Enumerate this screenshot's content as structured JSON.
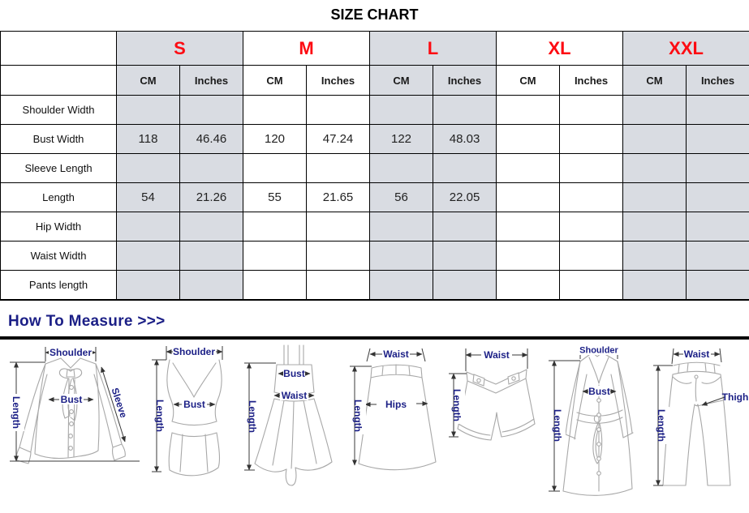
{
  "title": "SIZE CHART",
  "colors": {
    "size_letter_red": "#fd0b12",
    "shaded_column_bg": "#d9dce2",
    "heading_navy": "#1b1f86",
    "drawing_label_navy": "#1b1f86",
    "table_border": "#000000",
    "divider_black": "#090909",
    "garment_line_gray": "#a8a8a8"
  },
  "table": {
    "sizes": [
      {
        "label": "S",
        "shaded": true
      },
      {
        "label": "M",
        "shaded": false
      },
      {
        "label": "L",
        "shaded": true
      },
      {
        "label": "XL",
        "shaded": false
      },
      {
        "label": "XXL",
        "shaded": true
      }
    ],
    "unit_headers": [
      "CM",
      "Inches"
    ],
    "rows": [
      {
        "label": "Shoulder Width",
        "values": [
          "",
          "",
          "",
          "",
          "",
          "",
          "",
          "",
          "",
          ""
        ]
      },
      {
        "label": "Bust Width",
        "values": [
          "118",
          "46.46",
          "120",
          "47.24",
          "122",
          "48.03",
          "",
          "",
          "",
          ""
        ]
      },
      {
        "label": "Sleeve Length",
        "values": [
          "",
          "",
          "",
          "",
          "",
          "",
          "",
          "",
          "",
          ""
        ]
      },
      {
        "label": "Length",
        "values": [
          "54",
          "21.26",
          "55",
          "21.65",
          "56",
          "22.05",
          "",
          "",
          "",
          ""
        ]
      },
      {
        "label": "Hip Width",
        "values": [
          "",
          "",
          "",
          "",
          "",
          "",
          "",
          "",
          "",
          ""
        ]
      },
      {
        "label": "Waist Width",
        "values": [
          "",
          "",
          "",
          "",
          "",
          "",
          "",
          "",
          "",
          ""
        ]
      },
      {
        "label": "Pants length",
        "values": [
          "",
          "",
          "",
          "",
          "",
          "",
          "",
          "",
          "",
          ""
        ]
      }
    ]
  },
  "measure": {
    "heading": "How To Measure >>>",
    "garments": [
      {
        "name": "blouse",
        "labels": {
          "shoulder": "Shoulder",
          "bust": "Bust",
          "length": "Length",
          "sleeve": "Sleeve"
        }
      },
      {
        "name": "tank-top",
        "labels": {
          "shoulder": "Shoulder",
          "bust": "Bust",
          "length": "Length"
        }
      },
      {
        "name": "cami-dress",
        "labels": {
          "bust": "Bust",
          "waist": "Waist",
          "length": "Length"
        }
      },
      {
        "name": "skirt",
        "labels": {
          "waist": "Waist",
          "hips": "Hips",
          "length": "Length"
        }
      },
      {
        "name": "shorts",
        "labels": {
          "waist": "Waist",
          "length": "Length"
        }
      },
      {
        "name": "coat",
        "labels": {
          "shoulder": "Shoulder",
          "bust": "Bust",
          "length": "Length"
        }
      },
      {
        "name": "jeans",
        "labels": {
          "waist": "Waist",
          "thigh": "Thigh",
          "length": "Length"
        }
      }
    ]
  }
}
